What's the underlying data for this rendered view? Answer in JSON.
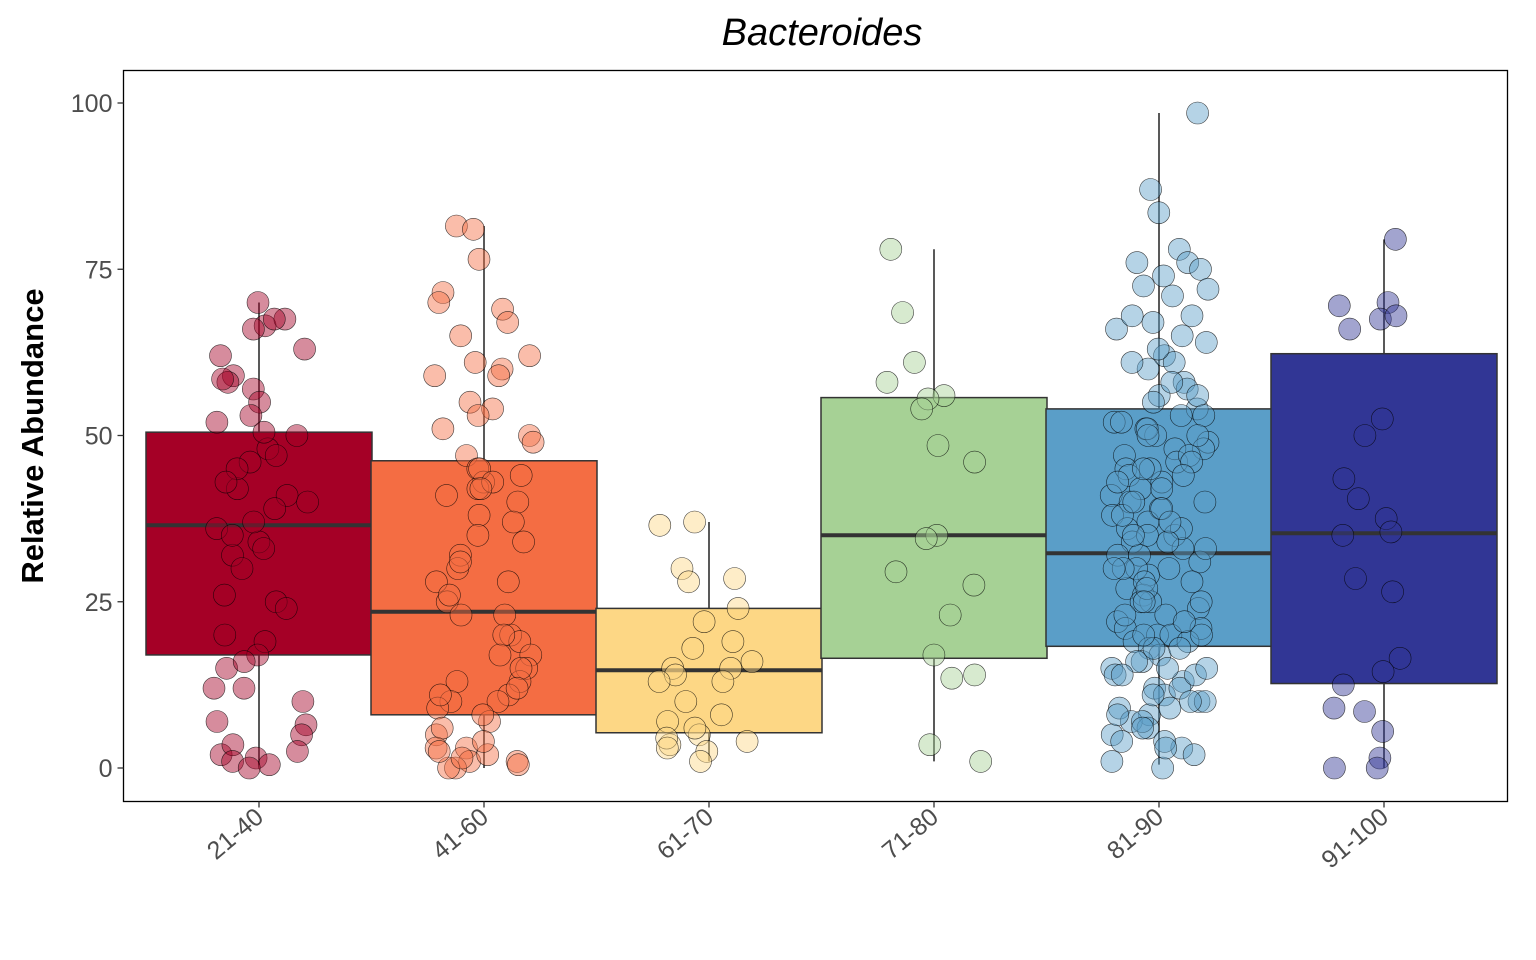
{
  "chart_data": {
    "type": "box",
    "title": "Bacteroides",
    "xlabel": "",
    "ylabel": "Relative Abundance",
    "ylim": [
      -5,
      105
    ],
    "yticks": [
      0,
      25,
      50,
      75,
      100
    ],
    "ytick_labels": [
      "0",
      "25",
      "50",
      "75",
      "100"
    ],
    "grid": false,
    "legend": "none",
    "categories": [
      "21-40",
      "41-60",
      "61-70",
      "71-80",
      "81-90",
      "91-100"
    ],
    "colors": [
      "#a50026",
      "#f46d43",
      "#fdd785",
      "#a6d195",
      "#5a9ec8",
      "#313695"
    ],
    "boxes": [
      {
        "category": "21-40",
        "whisker_low": 0.5,
        "q1": 17,
        "median": 36.5,
        "q3": 50.5,
        "whisker_high": 70
      },
      {
        "category": "41-60",
        "whisker_low": 0,
        "q1": 8,
        "median": 23.5,
        "q3": 46.2,
        "whisker_high": 81.5
      },
      {
        "category": "61-70",
        "whisker_low": 1,
        "q1": 5.3,
        "median": 14.7,
        "q3": 24,
        "whisker_high": 37
      },
      {
        "category": "71-80",
        "whisker_low": 1,
        "q1": 16.5,
        "median": 35,
        "q3": 55.7,
        "whisker_high": 78
      },
      {
        "category": "81-90",
        "whisker_low": 0.5,
        "q1": 18.3,
        "median": 32.3,
        "q3": 54,
        "whisker_high": 98.5
      },
      {
        "category": "91-100",
        "whisker_low": 0,
        "q1": 12.7,
        "median": 35.3,
        "q3": 62.3,
        "whisker_high": 79.5
      }
    ],
    "points": [
      {
        "category": "21-40",
        "values": [
          70,
          66.5,
          62,
          59,
          57,
          55,
          52,
          50,
          48,
          46,
          42,
          41,
          39,
          36,
          34,
          32,
          25,
          20,
          19,
          17,
          15,
          12,
          10,
          6.5,
          2,
          66,
          63,
          58,
          53,
          50.5,
          47,
          45,
          43,
          40,
          37,
          35,
          33,
          30,
          26,
          24,
          16,
          12,
          7,
          5,
          3.5,
          2.5,
          1.5,
          1,
          0.5,
          0,
          67.5,
          67.5,
          58.5
        ]
      },
      {
        "category": "41-60",
        "values": [
          81.5,
          76.5,
          71.5,
          70,
          61,
          60,
          59,
          50,
          47,
          45,
          43,
          42,
          40,
          38,
          35,
          32,
          30,
          28,
          25,
          23,
          20,
          19,
          17,
          15,
          13,
          11,
          10,
          7,
          5,
          3,
          1,
          0,
          81,
          69,
          67,
          65,
          62,
          59,
          55,
          54,
          53,
          51,
          49,
          45,
          44,
          43,
          42,
          41,
          37,
          34,
          31,
          28,
          26,
          23,
          20,
          17,
          15,
          13,
          12,
          10,
          9,
          6,
          3,
          2,
          1,
          0.5,
          0,
          4,
          2.5,
          1.5,
          8,
          11
        ]
      },
      {
        "category": "61-70",
        "values": [
          37,
          30,
          28,
          24,
          15,
          14,
          13,
          8,
          7,
          5,
          3.5,
          2.5,
          1,
          36.5,
          28.5,
          22,
          19,
          18,
          16,
          15,
          13,
          10,
          6,
          4.5,
          4,
          3
        ]
      },
      {
        "category": "71-80",
        "values": [
          78,
          68.5,
          61,
          58,
          56,
          55.5,
          54,
          48.5,
          46,
          35,
          34.5,
          29.5,
          27.5,
          23,
          17,
          14,
          13.5,
          3.5,
          1
        ]
      },
      {
        "category": "81-90",
        "values": [
          98.5,
          87,
          83.5,
          78,
          76,
          75,
          74,
          72,
          71,
          68,
          67,
          66,
          64,
          62,
          61,
          60,
          58,
          57,
          56,
          55,
          54,
          53,
          52,
          51,
          50,
          49,
          48,
          47,
          46,
          45,
          44,
          43,
          42,
          41,
          40,
          39,
          38,
          37,
          36,
          35,
          34,
          33,
          32,
          31,
          30,
          29,
          28,
          27,
          26,
          25,
          24,
          23,
          22,
          21,
          20,
          19,
          18,
          17,
          16,
          15,
          14,
          13,
          12,
          11,
          10,
          9,
          8,
          7,
          6,
          5,
          4,
          3,
          2,
          1,
          0,
          76,
          72.5,
          68,
          65,
          63,
          61,
          58,
          56,
          53,
          51,
          48,
          47,
          45,
          43,
          40,
          38,
          36,
          34,
          33,
          30,
          28,
          25,
          23,
          21,
          20,
          19,
          18,
          16,
          15,
          14,
          12,
          10,
          9,
          7,
          6,
          4,
          3,
          52,
          50,
          46,
          44,
          42,
          39,
          37,
          35,
          32,
          30,
          27,
          25,
          22,
          20,
          18,
          14,
          11,
          8,
          50,
          45,
          40,
          35,
          30,
          25,
          20,
          15,
          10
        ]
      },
      {
        "category": "91-100",
        "values": [
          79.5,
          70,
          69.5,
          67.5,
          66,
          52.5,
          50,
          40.5,
          37.5,
          35.5,
          28.5,
          26.5,
          16.5,
          14.5,
          12.5,
          9,
          5.5,
          1.5,
          0,
          68,
          43.5,
          35,
          8.5,
          0
        ]
      }
    ]
  }
}
